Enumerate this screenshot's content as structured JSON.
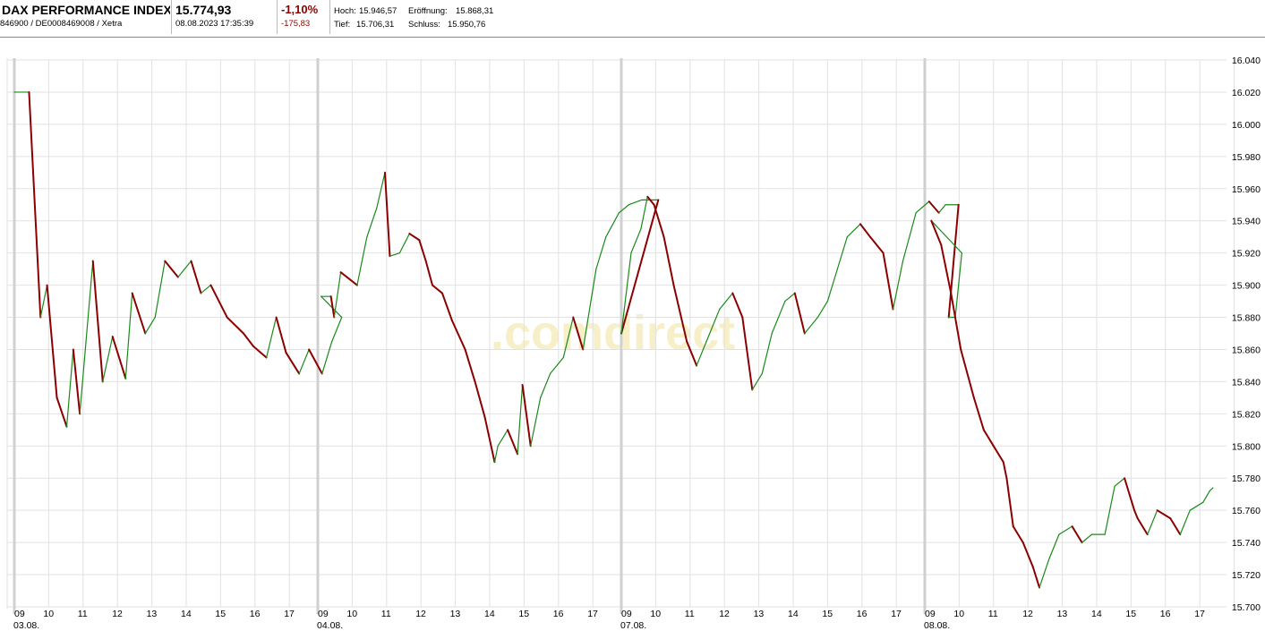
{
  "header": {
    "name": "DAX PERFORMANCE INDEX",
    "ids": "846900 / DE0008469008 / Xetra",
    "price": "15.774,93",
    "datetime": "08.08.2023 17:35:39",
    "change_pct": "-1,10%",
    "change_abs": "-175,83",
    "high_label": "Hoch:",
    "high": "15.946,57",
    "low_label": "Tief:",
    "low": "15.706,31",
    "open_label": "Eröffnung:",
    "open": "15.868,31",
    "close_label": "Schluss:",
    "close": "15.950,76"
  },
  "watermark": ".comdirect",
  "colors": {
    "up": "#1a8a1a",
    "down": "#8b0000",
    "grid": "#e2e2e2",
    "daysep": "#d0d0d0"
  },
  "chart_data": {
    "type": "line",
    "title": "",
    "xlabel": "",
    "ylabel": "",
    "ylim": [
      15700,
      16040
    ],
    "y_ticks": [
      "16.040",
      "16.020",
      "16.000",
      "15.980",
      "15.960",
      "15.940",
      "15.920",
      "15.900",
      "15.880",
      "15.860",
      "15.840",
      "15.820",
      "15.800",
      "15.780",
      "15.760",
      "15.740",
      "15.720",
      "15.700"
    ],
    "grid": true,
    "days": [
      {
        "date": "03.08.",
        "hours": [
          "09",
          "10",
          "11",
          "12",
          "13",
          "14",
          "15",
          "16",
          "17"
        ]
      },
      {
        "date": "04.08.",
        "hours": [
          "09",
          "10",
          "11",
          "12",
          "13",
          "14",
          "15",
          "16",
          "17"
        ]
      },
      {
        "date": "07.08.",
        "hours": [
          "09",
          "10",
          "11",
          "12",
          "13",
          "14",
          "15",
          "16",
          "17"
        ]
      },
      {
        "date": "08.08.",
        "hours": [
          "09",
          "10",
          "11",
          "12",
          "13",
          "14",
          "15",
          "16",
          "17"
        ]
      }
    ],
    "series": [
      {
        "points": [
          [
            0,
            16020
          ],
          [
            0.45,
            16020
          ],
          [
            0.8,
            15880
          ],
          [
            1,
            15900
          ],
          [
            1.3,
            15830
          ],
          [
            1.6,
            15812
          ],
          [
            1.8,
            15860
          ],
          [
            2,
            15820
          ],
          [
            2.4,
            15915
          ],
          [
            2.7,
            15840
          ],
          [
            3,
            15868
          ],
          [
            3.4,
            15842
          ],
          [
            3.6,
            15895
          ],
          [
            4,
            15870
          ],
          [
            4.3,
            15880
          ],
          [
            4.6,
            15915
          ],
          [
            5,
            15905
          ],
          [
            5.4,
            15915
          ],
          [
            5.7,
            15895
          ],
          [
            6,
            15900
          ],
          [
            6.5,
            15880
          ],
          [
            7,
            15870
          ],
          [
            7.3,
            15862
          ],
          [
            7.7,
            15855
          ],
          [
            8,
            15880
          ],
          [
            8.3,
            15858
          ],
          [
            8.7,
            15845
          ],
          [
            9,
            15860
          ],
          [
            9.4,
            15845
          ],
          [
            9.7,
            15865
          ],
          [
            10,
            15880
          ],
          [
            10.6,
            15893
          ],
          [
            10.9,
            15893
          ],
          [
            11,
            15880
          ],
          [
            11.2,
            15908
          ],
          [
            11.7,
            15900
          ],
          [
            12,
            15930
          ],
          [
            12.3,
            15948
          ],
          [
            12.55,
            15970
          ],
          [
            12.7,
            15918
          ],
          [
            13,
            15920
          ],
          [
            13.3,
            15932
          ],
          [
            13.6,
            15928
          ],
          [
            13.8,
            15915
          ],
          [
            14,
            15900
          ],
          [
            14.3,
            15895
          ],
          [
            14.6,
            15878
          ],
          [
            15,
            15860
          ],
          [
            15.3,
            15840
          ],
          [
            15.6,
            15818
          ],
          [
            15.9,
            15790
          ],
          [
            16,
            15800
          ],
          [
            16.3,
            15810
          ],
          [
            16.6,
            15795
          ],
          [
            16.75,
            15838
          ],
          [
            17,
            15800
          ],
          [
            17.3,
            15830
          ],
          [
            17.6,
            15845
          ],
          [
            18,
            15855
          ],
          [
            18.3,
            15880
          ],
          [
            18.6,
            15860
          ],
          [
            19,
            15910
          ],
          [
            19.3,
            15930
          ],
          [
            19.7,
            15945
          ],
          [
            20,
            15950
          ],
          [
            20.4,
            15953
          ],
          [
            20.9,
            15953
          ],
          [
            21,
            15870
          ],
          [
            21.3,
            15920
          ],
          [
            21.6,
            15935
          ],
          [
            21.8,
            15955
          ],
          [
            22,
            15950
          ],
          [
            22.3,
            15930
          ],
          [
            22.6,
            15900
          ],
          [
            23,
            15865
          ],
          [
            23.3,
            15850
          ],
          [
            23.6,
            15865
          ],
          [
            24,
            15885
          ],
          [
            24.4,
            15895
          ],
          [
            24.7,
            15880
          ],
          [
            25,
            15835
          ],
          [
            25.3,
            15845
          ],
          [
            25.6,
            15870
          ],
          [
            26,
            15890
          ],
          [
            26.3,
            15895
          ],
          [
            26.6,
            15870
          ],
          [
            27,
            15880
          ],
          [
            27.3,
            15890
          ],
          [
            27.6,
            15910
          ],
          [
            27.9,
            15930
          ],
          [
            28.3,
            15938
          ],
          [
            28.6,
            15930
          ],
          [
            29,
            15920
          ],
          [
            29.3,
            15885
          ],
          [
            29.6,
            15915
          ],
          [
            30,
            15945
          ],
          [
            30.4,
            15952
          ],
          [
            30.7,
            15945
          ],
          [
            30.9,
            15950
          ],
          [
            31.3,
            15950
          ],
          [
            31,
            15880
          ],
          [
            31.2,
            15880
          ],
          [
            31.4,
            15920
          ],
          [
            31.7,
            15940
          ],
          [
            32,
            15925
          ],
          [
            32.3,
            15895
          ],
          [
            32.6,
            15860
          ],
          [
            33,
            15830
          ],
          [
            33.3,
            15810
          ],
          [
            33.6,
            15800
          ],
          [
            33.9,
            15790
          ],
          [
            34,
            15780
          ],
          [
            34.2,
            15750
          ],
          [
            34.5,
            15740
          ],
          [
            34.8,
            15725
          ],
          [
            35,
            15712
          ],
          [
            35.3,
            15730
          ],
          [
            35.6,
            15745
          ],
          [
            36,
            15750
          ],
          [
            36.3,
            15740
          ],
          [
            36.6,
            15745
          ],
          [
            37,
            15745
          ],
          [
            37.3,
            15775
          ],
          [
            37.6,
            15780
          ],
          [
            37.9,
            15760
          ],
          [
            38,
            15755
          ],
          [
            38.3,
            15745
          ],
          [
            38.6,
            15760
          ],
          [
            39,
            15755
          ],
          [
            39.3,
            15745
          ],
          [
            39.6,
            15760
          ],
          [
            40,
            15765
          ],
          [
            40.2,
            15772
          ],
          [
            40.3,
            15774
          ]
        ]
      }
    ]
  }
}
